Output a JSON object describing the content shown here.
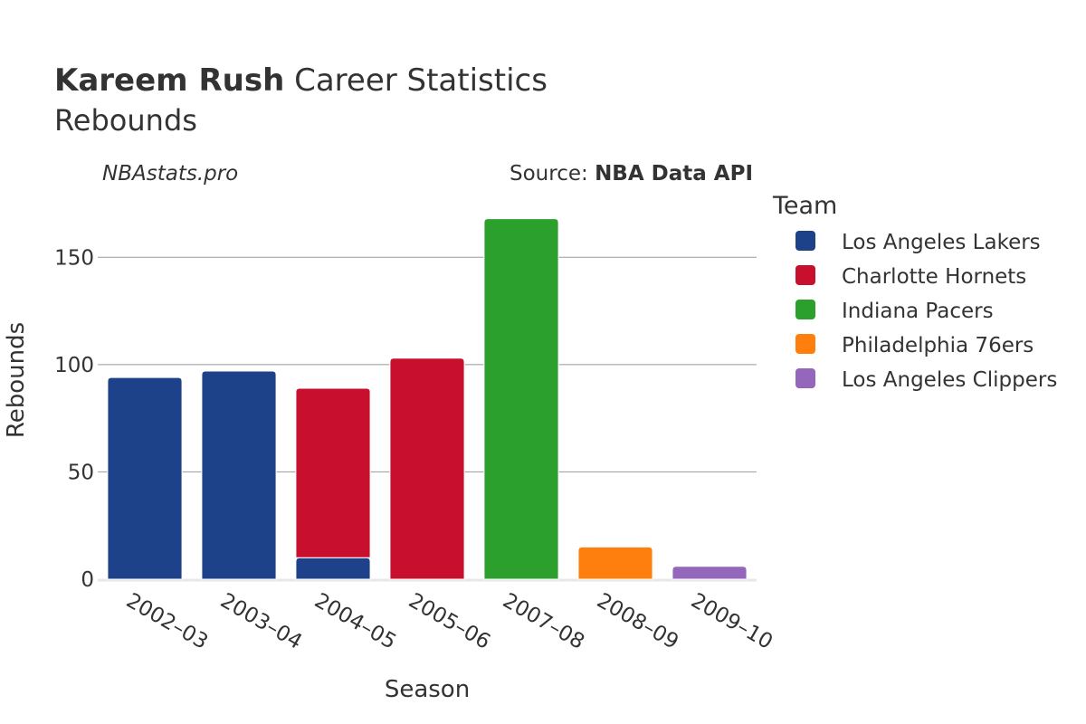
{
  "title": {
    "bold": "Kareem Rush",
    "rest": " Career Statistics",
    "subtitle": "Rebounds"
  },
  "watermark": "NBAstats.pro",
  "source": {
    "label": "Source: ",
    "name": "NBA Data API"
  },
  "legend": {
    "title": "Team"
  },
  "chart_data": {
    "type": "bar",
    "stacked": true,
    "xlabel": "Season",
    "ylabel": "Rebounds",
    "ylim": [
      0,
      175
    ],
    "yticks": [
      0,
      50,
      100,
      150
    ],
    "grid": true,
    "legend_position": "right",
    "categories": [
      "2002–03",
      "2003–04",
      "2004–05",
      "2005–06",
      "2007–08",
      "2008–09",
      "2009–10"
    ],
    "series": [
      {
        "name": "Los Angeles Lakers",
        "color": "#1d428a",
        "values": [
          94,
          97,
          10,
          0,
          0,
          0,
          0
        ]
      },
      {
        "name": "Charlotte Hornets",
        "color": "#c8102e",
        "values": [
          0,
          0,
          79,
          103,
          0,
          0,
          0
        ]
      },
      {
        "name": "Indiana Pacers",
        "color": "#2ca02c",
        "values": [
          0,
          0,
          0,
          0,
          168,
          0,
          0
        ]
      },
      {
        "name": "Philadelphia 76ers",
        "color": "#ff7f0e",
        "values": [
          0,
          0,
          0,
          0,
          0,
          15,
          0
        ]
      },
      {
        "name": "Los Angeles Clippers",
        "color": "#9467bd",
        "values": [
          0,
          0,
          0,
          0,
          0,
          0,
          6
        ]
      }
    ]
  }
}
